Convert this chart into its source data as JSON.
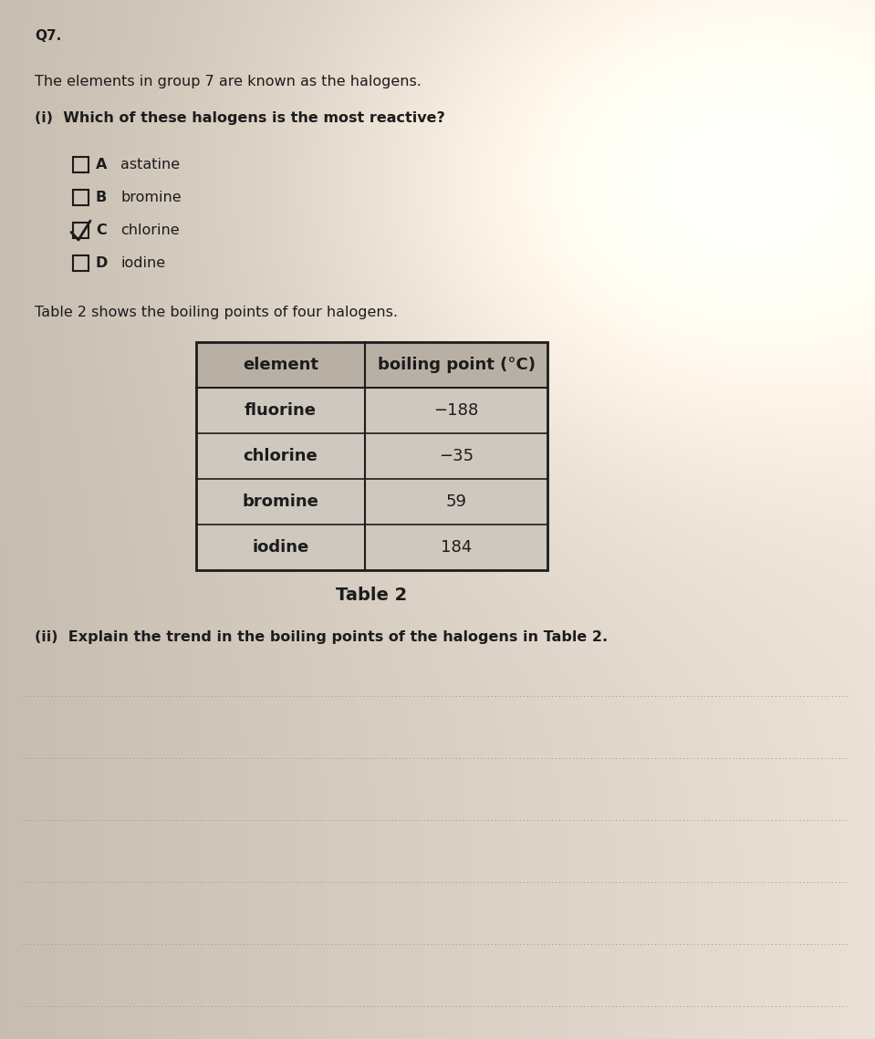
{
  "bg_color_left": "#c8bfb0",
  "bg_color_right": "#e8e0d4",
  "q_label": "Q7.",
  "intro_text": "The elements in group 7 are known as the halogens.",
  "part_i_label": "(i)  Which of these halogens is the most reactive?",
  "options": [
    {
      "letter": "A",
      "text": "astatine",
      "checked": false
    },
    {
      "letter": "B",
      "text": "bromine",
      "checked": false
    },
    {
      "letter": "C",
      "text": "chlorine",
      "checked": true
    },
    {
      "letter": "D",
      "text": "iodine",
      "checked": false
    }
  ],
  "table_intro": "Table 2 shows the boiling points of four halogens.",
  "table_headers": [
    "element",
    "boiling point (°C)"
  ],
  "table_data": [
    [
      "fluorine",
      "−188"
    ],
    [
      "chlorine",
      "−35"
    ],
    [
      "bromine",
      "59"
    ],
    [
      "iodine",
      "184"
    ]
  ],
  "table_caption": "Table 2",
  "part_ii_label": "(ii)  Explain the trend in the boiling points of the halogens in Table 2.",
  "num_answer_lines": 6,
  "text_color": "#1c1c1c",
  "table_header_bg": "#b8b0a4",
  "table_row_bg": "#cfc8be",
  "table_border_color": "#1c1c1c",
  "line_color": "#999988"
}
